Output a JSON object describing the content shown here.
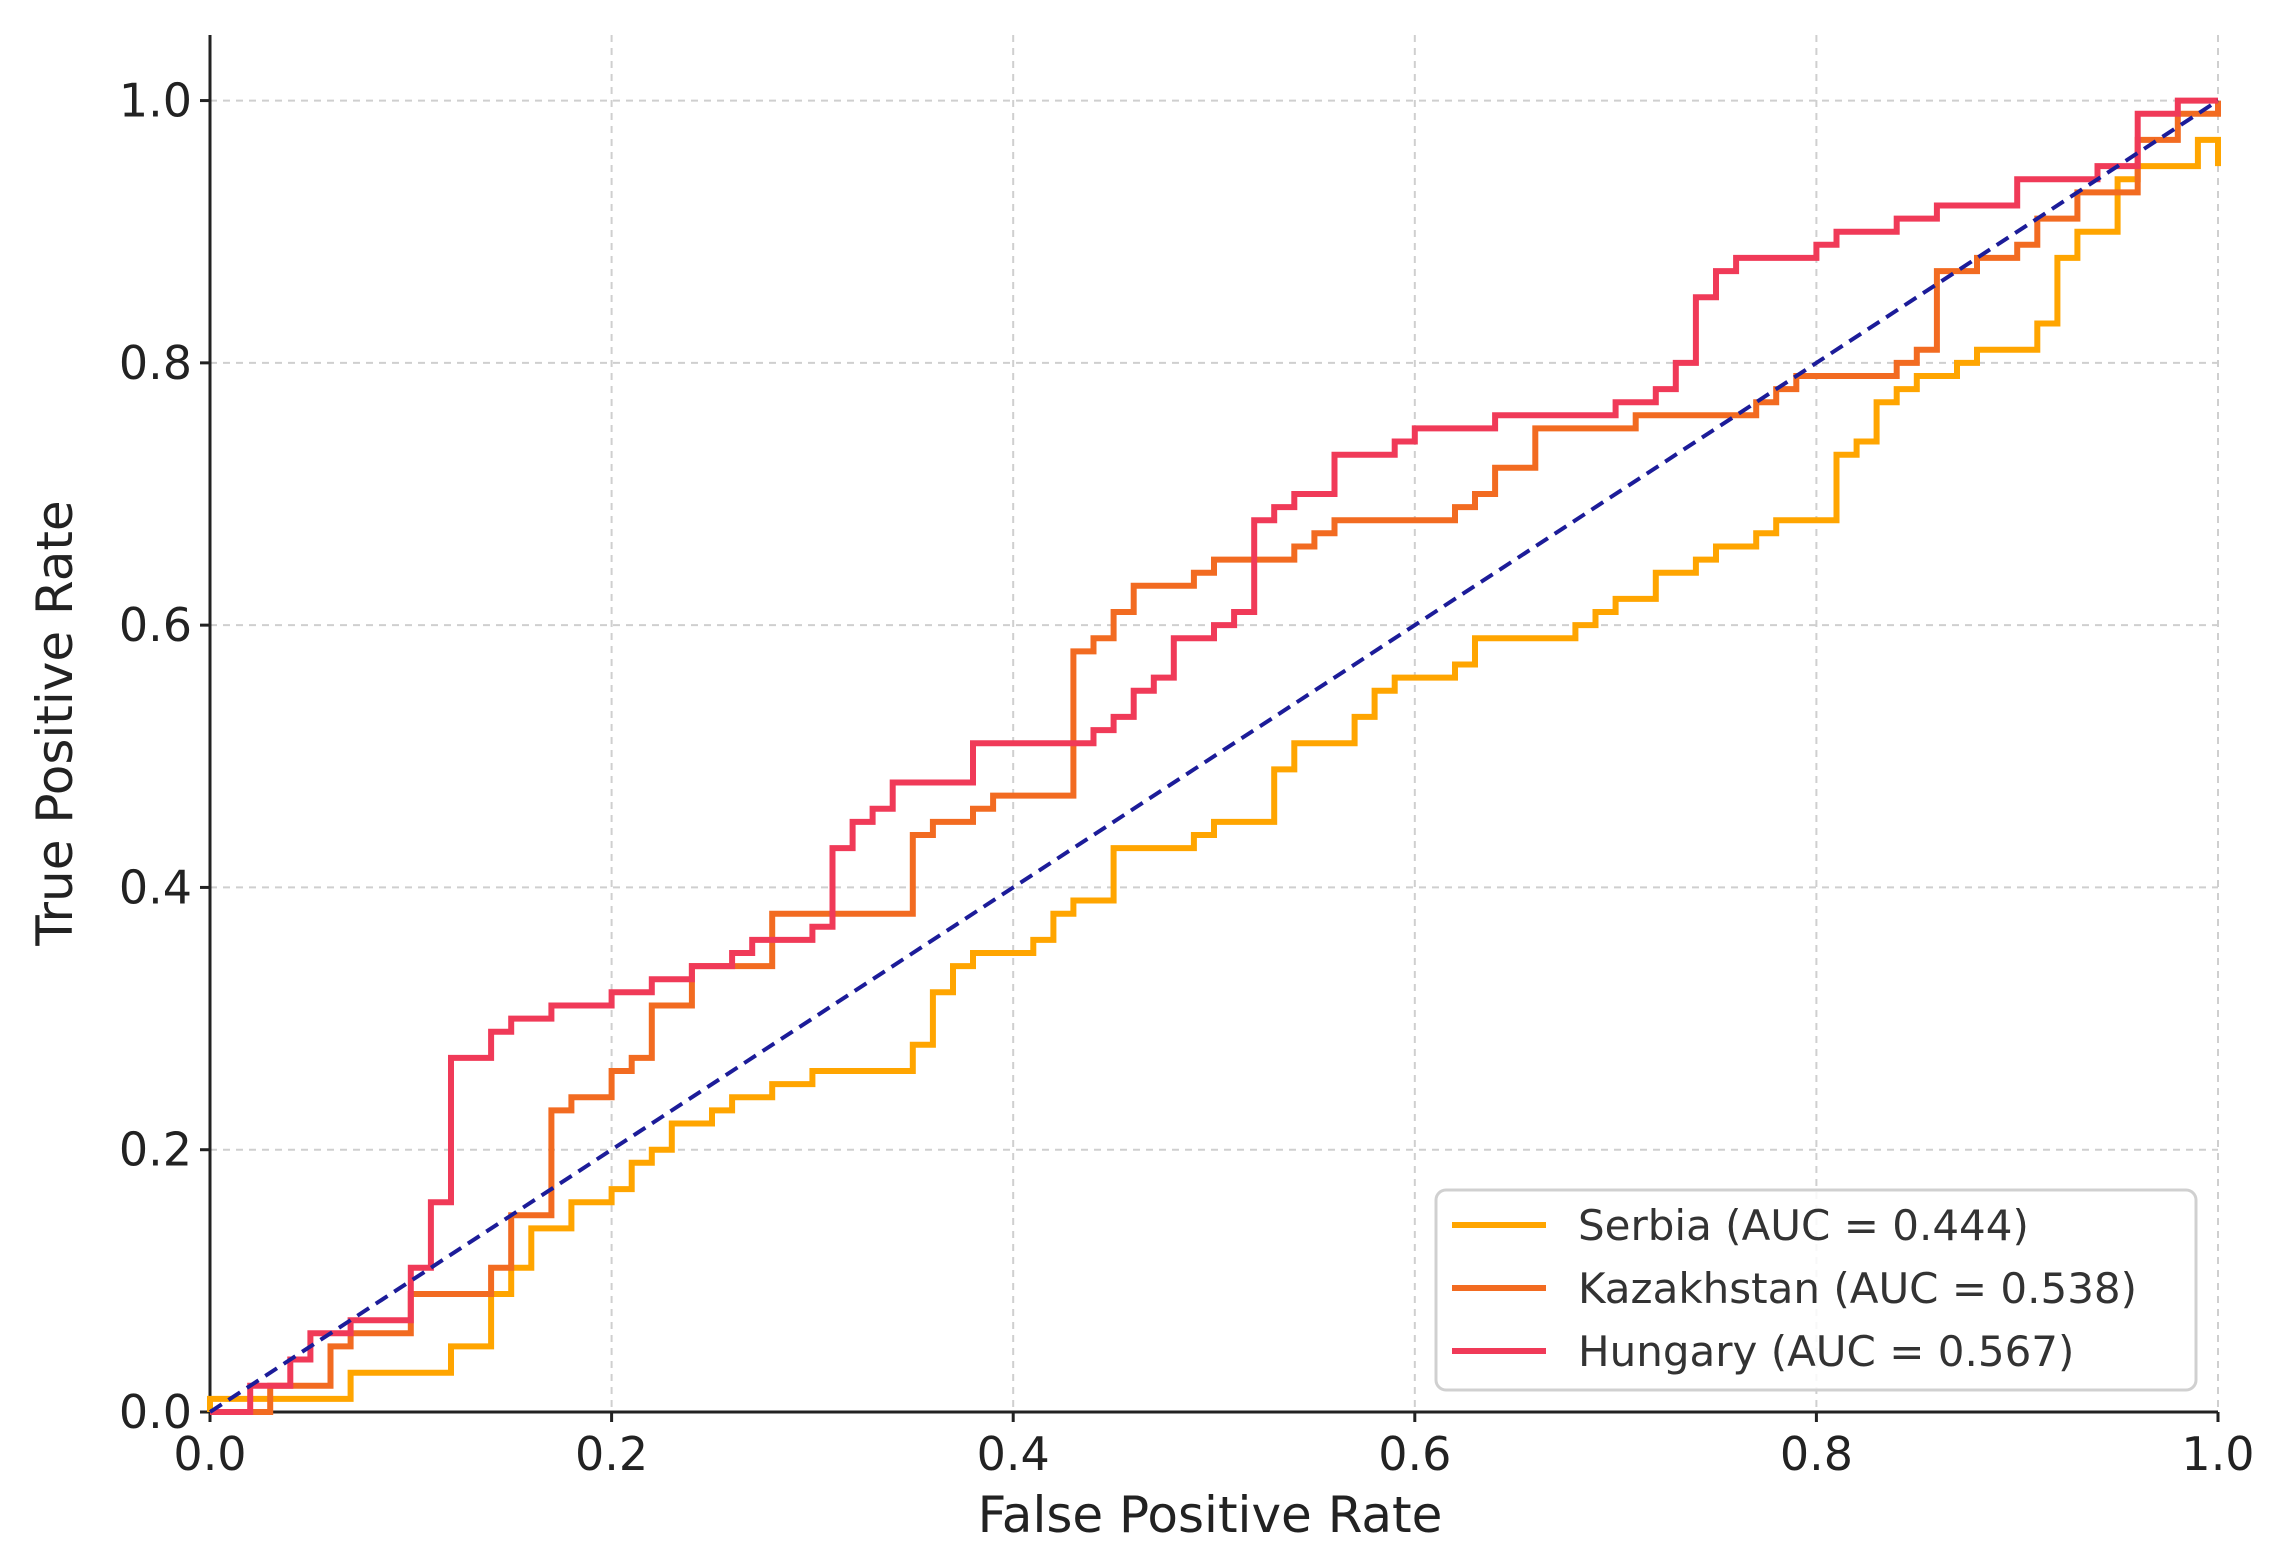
{
  "chart_data": {
    "type": "line",
    "title": "",
    "xlabel": "False Positive Rate",
    "ylabel": "True Positive Rate",
    "xlim": [
      0.0,
      1.0
    ],
    "ylim": [
      0.0,
      1.05
    ],
    "xticks": [
      0.0,
      0.2,
      0.4,
      0.6,
      0.8,
      1.0
    ],
    "yticks": [
      0.0,
      0.2,
      0.4,
      0.6,
      0.8,
      1.0
    ],
    "xtick_labels": [
      "0.0",
      "0.2",
      "0.4",
      "0.6",
      "0.8",
      "1.0"
    ],
    "ytick_labels": [
      "0.0",
      "0.2",
      "0.4",
      "0.6",
      "0.8",
      "1.0"
    ],
    "grid": true,
    "legend_position": "lower-right",
    "series": [
      {
        "name": "Serbia",
        "label": "Serbia (AUC = 0.444)",
        "auc": 0.444,
        "color": "#FFA500",
        "points": [
          [
            0,
            0
          ],
          [
            0,
            0.01
          ],
          [
            0.07,
            0.01
          ],
          [
            0.07,
            0.03
          ],
          [
            0.12,
            0.03
          ],
          [
            0.12,
            0.05
          ],
          [
            0.14,
            0.05
          ],
          [
            0.14,
            0.09
          ],
          [
            0.15,
            0.09
          ],
          [
            0.15,
            0.11
          ],
          [
            0.16,
            0.11
          ],
          [
            0.16,
            0.14
          ],
          [
            0.18,
            0.14
          ],
          [
            0.18,
            0.16
          ],
          [
            0.2,
            0.16
          ],
          [
            0.2,
            0.17
          ],
          [
            0.21,
            0.17
          ],
          [
            0.21,
            0.19
          ],
          [
            0.22,
            0.19
          ],
          [
            0.22,
            0.2
          ],
          [
            0.23,
            0.2
          ],
          [
            0.23,
            0.22
          ],
          [
            0.25,
            0.22
          ],
          [
            0.25,
            0.23
          ],
          [
            0.26,
            0.23
          ],
          [
            0.26,
            0.24
          ],
          [
            0.28,
            0.24
          ],
          [
            0.28,
            0.25
          ],
          [
            0.3,
            0.25
          ],
          [
            0.3,
            0.26
          ],
          [
            0.35,
            0.26
          ],
          [
            0.35,
            0.28
          ],
          [
            0.36,
            0.28
          ],
          [
            0.36,
            0.32
          ],
          [
            0.37,
            0.32
          ],
          [
            0.37,
            0.34
          ],
          [
            0.38,
            0.34
          ],
          [
            0.38,
            0.35
          ],
          [
            0.41,
            0.35
          ],
          [
            0.41,
            0.36
          ],
          [
            0.42,
            0.36
          ],
          [
            0.42,
            0.38
          ],
          [
            0.43,
            0.38
          ],
          [
            0.43,
            0.39
          ],
          [
            0.45,
            0.39
          ],
          [
            0.45,
            0.43
          ],
          [
            0.49,
            0.43
          ],
          [
            0.49,
            0.44
          ],
          [
            0.5,
            0.44
          ],
          [
            0.5,
            0.45
          ],
          [
            0.53,
            0.45
          ],
          [
            0.53,
            0.49
          ],
          [
            0.54,
            0.49
          ],
          [
            0.54,
            0.51
          ],
          [
            0.57,
            0.51
          ],
          [
            0.57,
            0.53
          ],
          [
            0.58,
            0.53
          ],
          [
            0.58,
            0.55
          ],
          [
            0.59,
            0.55
          ],
          [
            0.59,
            0.56
          ],
          [
            0.62,
            0.56
          ],
          [
            0.62,
            0.57
          ],
          [
            0.63,
            0.57
          ],
          [
            0.63,
            0.59
          ],
          [
            0.68,
            0.59
          ],
          [
            0.68,
            0.6
          ],
          [
            0.69,
            0.6
          ],
          [
            0.69,
            0.61
          ],
          [
            0.7,
            0.61
          ],
          [
            0.7,
            0.62
          ],
          [
            0.72,
            0.62
          ],
          [
            0.72,
            0.64
          ],
          [
            0.74,
            0.64
          ],
          [
            0.74,
            0.65
          ],
          [
            0.75,
            0.65
          ],
          [
            0.75,
            0.66
          ],
          [
            0.77,
            0.66
          ],
          [
            0.77,
            0.67
          ],
          [
            0.78,
            0.67
          ],
          [
            0.78,
            0.68
          ],
          [
            0.81,
            0.68
          ],
          [
            0.81,
            0.73
          ],
          [
            0.82,
            0.73
          ],
          [
            0.82,
            0.74
          ],
          [
            0.83,
            0.74
          ],
          [
            0.83,
            0.77
          ],
          [
            0.84,
            0.77
          ],
          [
            0.84,
            0.78
          ],
          [
            0.85,
            0.78
          ],
          [
            0.85,
            0.79
          ],
          [
            0.87,
            0.79
          ],
          [
            0.87,
            0.8
          ],
          [
            0.88,
            0.8
          ],
          [
            0.88,
            0.81
          ],
          [
            0.91,
            0.81
          ],
          [
            0.91,
            0.83
          ],
          [
            0.92,
            0.83
          ],
          [
            0.92,
            0.88
          ],
          [
            0.93,
            0.88
          ],
          [
            0.93,
            0.9
          ],
          [
            0.95,
            0.9
          ],
          [
            0.95,
            0.94
          ],
          [
            0.96,
            0.94
          ],
          [
            0.96,
            0.95
          ],
          [
            0.99,
            0.95
          ],
          [
            0.99,
            0.97
          ],
          [
            1.0,
            0.97
          ],
          [
            1.0,
            0.95
          ]
        ]
      },
      {
        "name": "Kazakhstan",
        "label": "Kazakhstan (AUC = 0.538)",
        "auc": 0.538,
        "color": "#F26B21",
        "points": [
          [
            0,
            0
          ],
          [
            0.03,
            0
          ],
          [
            0.03,
            0.02
          ],
          [
            0.06,
            0.02
          ],
          [
            0.06,
            0.05
          ],
          [
            0.07,
            0.05
          ],
          [
            0.07,
            0.06
          ],
          [
            0.1,
            0.06
          ],
          [
            0.1,
            0.07
          ],
          [
            0.1,
            0.09
          ],
          [
            0.14,
            0.09
          ],
          [
            0.14,
            0.11
          ],
          [
            0.15,
            0.11
          ],
          [
            0.15,
            0.15
          ],
          [
            0.17,
            0.15
          ],
          [
            0.17,
            0.23
          ],
          [
            0.18,
            0.23
          ],
          [
            0.18,
            0.24
          ],
          [
            0.2,
            0.24
          ],
          [
            0.2,
            0.26
          ],
          [
            0.21,
            0.26
          ],
          [
            0.21,
            0.27
          ],
          [
            0.22,
            0.27
          ],
          [
            0.22,
            0.31
          ],
          [
            0.24,
            0.31
          ],
          [
            0.24,
            0.34
          ],
          [
            0.28,
            0.34
          ],
          [
            0.28,
            0.38
          ],
          [
            0.35,
            0.38
          ],
          [
            0.35,
            0.44
          ],
          [
            0.36,
            0.44
          ],
          [
            0.36,
            0.45
          ],
          [
            0.38,
            0.45
          ],
          [
            0.38,
            0.46
          ],
          [
            0.39,
            0.46
          ],
          [
            0.39,
            0.47
          ],
          [
            0.43,
            0.47
          ],
          [
            0.43,
            0.58
          ],
          [
            0.44,
            0.58
          ],
          [
            0.44,
            0.59
          ],
          [
            0.45,
            0.59
          ],
          [
            0.45,
            0.61
          ],
          [
            0.46,
            0.61
          ],
          [
            0.46,
            0.63
          ],
          [
            0.49,
            0.63
          ],
          [
            0.49,
            0.64
          ],
          [
            0.5,
            0.64
          ],
          [
            0.5,
            0.65
          ],
          [
            0.54,
            0.65
          ],
          [
            0.54,
            0.66
          ],
          [
            0.55,
            0.66
          ],
          [
            0.55,
            0.67
          ],
          [
            0.56,
            0.67
          ],
          [
            0.56,
            0.68
          ],
          [
            0.62,
            0.68
          ],
          [
            0.62,
            0.69
          ],
          [
            0.63,
            0.69
          ],
          [
            0.63,
            0.7
          ],
          [
            0.64,
            0.7
          ],
          [
            0.64,
            0.72
          ],
          [
            0.66,
            0.72
          ],
          [
            0.66,
            0.75
          ],
          [
            0.71,
            0.75
          ],
          [
            0.71,
            0.76
          ],
          [
            0.77,
            0.76
          ],
          [
            0.77,
            0.77
          ],
          [
            0.78,
            0.77
          ],
          [
            0.78,
            0.78
          ],
          [
            0.79,
            0.78
          ],
          [
            0.79,
            0.79
          ],
          [
            0.84,
            0.79
          ],
          [
            0.84,
            0.8
          ],
          [
            0.85,
            0.8
          ],
          [
            0.85,
            0.81
          ],
          [
            0.86,
            0.81
          ],
          [
            0.86,
            0.87
          ],
          [
            0.88,
            0.87
          ],
          [
            0.88,
            0.88
          ],
          [
            0.9,
            0.88
          ],
          [
            0.9,
            0.89
          ],
          [
            0.91,
            0.89
          ],
          [
            0.91,
            0.91
          ],
          [
            0.93,
            0.91
          ],
          [
            0.93,
            0.93
          ],
          [
            0.96,
            0.93
          ],
          [
            0.96,
            0.97
          ],
          [
            0.98,
            0.97
          ],
          [
            0.98,
            0.99
          ],
          [
            1.0,
            0.99
          ],
          [
            1.0,
            1.0
          ]
        ]
      },
      {
        "name": "Hungary",
        "label": "Hungary (AUC = 0.567)",
        "auc": 0.567,
        "color": "#F03A58",
        "points": [
          [
            0,
            0
          ],
          [
            0.02,
            0
          ],
          [
            0.02,
            0.02
          ],
          [
            0.04,
            0.02
          ],
          [
            0.04,
            0.04
          ],
          [
            0.05,
            0.04
          ],
          [
            0.05,
            0.06
          ],
          [
            0.07,
            0.06
          ],
          [
            0.07,
            0.07
          ],
          [
            0.1,
            0.07
          ],
          [
            0.1,
            0.11
          ],
          [
            0.11,
            0.11
          ],
          [
            0.11,
            0.16
          ],
          [
            0.12,
            0.16
          ],
          [
            0.12,
            0.27
          ],
          [
            0.14,
            0.27
          ],
          [
            0.14,
            0.29
          ],
          [
            0.15,
            0.29
          ],
          [
            0.15,
            0.3
          ],
          [
            0.17,
            0.3
          ],
          [
            0.17,
            0.31
          ],
          [
            0.2,
            0.31
          ],
          [
            0.2,
            0.32
          ],
          [
            0.22,
            0.32
          ],
          [
            0.22,
            0.33
          ],
          [
            0.24,
            0.33
          ],
          [
            0.24,
            0.34
          ],
          [
            0.26,
            0.34
          ],
          [
            0.26,
            0.35
          ],
          [
            0.27,
            0.35
          ],
          [
            0.27,
            0.36
          ],
          [
            0.3,
            0.36
          ],
          [
            0.3,
            0.37
          ],
          [
            0.31,
            0.37
          ],
          [
            0.31,
            0.43
          ],
          [
            0.32,
            0.43
          ],
          [
            0.32,
            0.45
          ],
          [
            0.33,
            0.45
          ],
          [
            0.33,
            0.46
          ],
          [
            0.34,
            0.46
          ],
          [
            0.34,
            0.48
          ],
          [
            0.38,
            0.48
          ],
          [
            0.38,
            0.51
          ],
          [
            0.44,
            0.51
          ],
          [
            0.44,
            0.52
          ],
          [
            0.45,
            0.52
          ],
          [
            0.45,
            0.53
          ],
          [
            0.46,
            0.53
          ],
          [
            0.46,
            0.55
          ],
          [
            0.47,
            0.55
          ],
          [
            0.47,
            0.56
          ],
          [
            0.48,
            0.56
          ],
          [
            0.48,
            0.59
          ],
          [
            0.5,
            0.59
          ],
          [
            0.5,
            0.6
          ],
          [
            0.51,
            0.6
          ],
          [
            0.51,
            0.61
          ],
          [
            0.52,
            0.61
          ],
          [
            0.52,
            0.68
          ],
          [
            0.53,
            0.68
          ],
          [
            0.53,
            0.69
          ],
          [
            0.54,
            0.69
          ],
          [
            0.54,
            0.7
          ],
          [
            0.56,
            0.7
          ],
          [
            0.56,
            0.73
          ],
          [
            0.59,
            0.73
          ],
          [
            0.59,
            0.74
          ],
          [
            0.6,
            0.74
          ],
          [
            0.6,
            0.75
          ],
          [
            0.64,
            0.75
          ],
          [
            0.64,
            0.76
          ],
          [
            0.7,
            0.76
          ],
          [
            0.7,
            0.77
          ],
          [
            0.72,
            0.77
          ],
          [
            0.72,
            0.78
          ],
          [
            0.73,
            0.78
          ],
          [
            0.73,
            0.8
          ],
          [
            0.74,
            0.8
          ],
          [
            0.74,
            0.85
          ],
          [
            0.75,
            0.85
          ],
          [
            0.75,
            0.87
          ],
          [
            0.76,
            0.87
          ],
          [
            0.76,
            0.88
          ],
          [
            0.8,
            0.88
          ],
          [
            0.8,
            0.89
          ],
          [
            0.81,
            0.89
          ],
          [
            0.81,
            0.9
          ],
          [
            0.84,
            0.9
          ],
          [
            0.84,
            0.91
          ],
          [
            0.86,
            0.91
          ],
          [
            0.86,
            0.92
          ],
          [
            0.9,
            0.92
          ],
          [
            0.9,
            0.94
          ],
          [
            0.94,
            0.94
          ],
          [
            0.94,
            0.95
          ],
          [
            0.96,
            0.95
          ],
          [
            0.96,
            0.99
          ],
          [
            0.98,
            0.99
          ],
          [
            0.98,
            1.0
          ],
          [
            1.0,
            1.0
          ]
        ]
      }
    ],
    "reference_line": {
      "name": "chance",
      "color": "#1C1C99",
      "points": [
        [
          0,
          0
        ],
        [
          1,
          1
        ]
      ],
      "style": "dashed"
    }
  }
}
